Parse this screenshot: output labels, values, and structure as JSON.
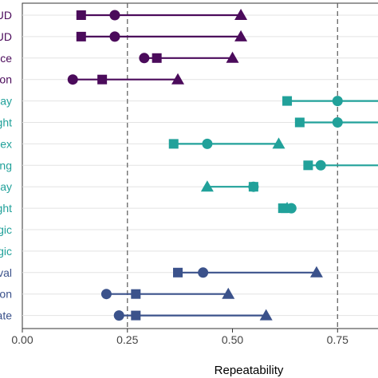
{
  "chart_data": {
    "type": "dumbbell",
    "xlabel": "Repeatability",
    "xlim": [
      0,
      0.85
    ],
    "xticks": [
      0,
      0.25,
      0.5,
      0.75
    ],
    "xtick_labels": [
      "0.00",
      "0.25",
      "0.50",
      "0.75"
    ],
    "reference_lines": [
      0.25,
      0.75
    ],
    "grid": "horizontal",
    "markers": {
      "circle": "circle",
      "square": "square",
      "triangle": "triangle"
    },
    "rows": [
      {
        "label": "UD",
        "color": "#4b0b5b",
        "circle": 0.22,
        "square": 0.14,
        "triangle": 0.52
      },
      {
        "label": "UD",
        "color": "#4b0b5b",
        "circle": 0.22,
        "square": 0.14,
        "triangle": 0.52
      },
      {
        "label": "ce",
        "color": "#4b0b5b",
        "circle": 0.29,
        "square": 0.32,
        "triangle": 0.5
      },
      {
        "label": "on",
        "color": "#4b0b5b",
        "circle": 0.12,
        "square": 0.19,
        "triangle": 0.37
      },
      {
        "label": "ay",
        "color": "#21a19a",
        "circle": 0.75,
        "square": 0.63,
        "triangle": 0.9
      },
      {
        "label": "ght",
        "color": "#21a19a",
        "circle": 0.75,
        "square": 0.66,
        "triangle": 0.9
      },
      {
        "label": "ex",
        "color": "#21a19a",
        "circle": 0.44,
        "square": 0.36,
        "triangle": 0.61
      },
      {
        "label": "ng",
        "color": "#21a19a",
        "circle": 0.71,
        "square": 0.68,
        "triangle": 0.9
      },
      {
        "label": "ay",
        "color": "#21a19a",
        "circle": 0.55,
        "square": 0.55,
        "triangle": 0.44
      },
      {
        "label": "ght",
        "color": "#21a19a",
        "circle": 0.64,
        "square": 0.62,
        "triangle": 0.63
      },
      {
        "label": "gic",
        "color": "#21a19a",
        "circle": null,
        "square": null,
        "triangle": null
      },
      {
        "label": "gic",
        "color": "#21a19a",
        "circle": null,
        "square": null,
        "triangle": null
      },
      {
        "label": "val",
        "color": "#3b528b",
        "circle": 0.43,
        "square": 0.37,
        "triangle": 0.7
      },
      {
        "label": "on",
        "color": "#3b528b",
        "circle": 0.2,
        "square": 0.27,
        "triangle": 0.49
      },
      {
        "label": "ate",
        "color": "#3b528b",
        "circle": 0.23,
        "square": 0.27,
        "triangle": 0.58
      }
    ]
  }
}
